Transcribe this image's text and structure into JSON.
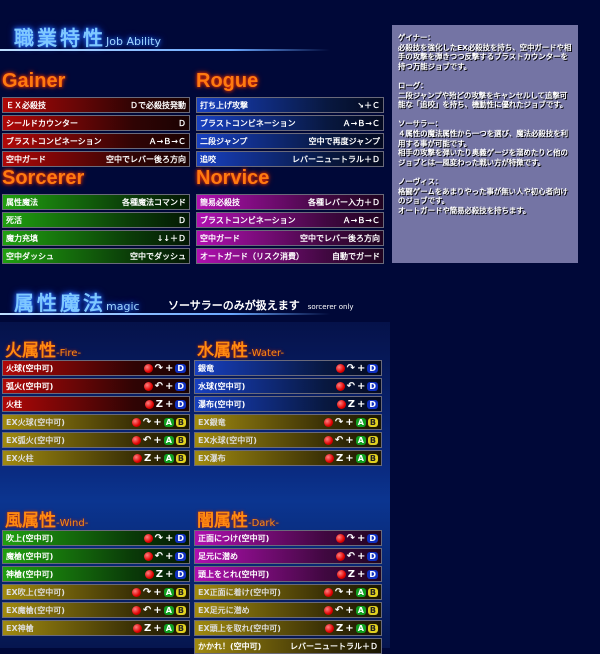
{
  "job_section": {
    "title": "職業特性",
    "title_en": "Job Ability"
  },
  "jobs": [
    {
      "name": "Gainer",
      "color": "red",
      "rows": [
        [
          "ＥＸ必殺技",
          "Ｄで必殺技発動"
        ],
        [
          "シールドカウンター",
          "Ｄ"
        ],
        [
          "ブラストコンビネーション",
          "Ａ→Ｂ→Ｃ"
        ],
        [
          "空中ガード",
          "空中でレバー後ろ方向"
        ]
      ]
    },
    {
      "name": "Rogue",
      "color": "blue",
      "rows": [
        [
          "打ち上げ攻撃",
          "↘＋Ｃ"
        ],
        [
          "ブラストコンビネーション",
          "Ａ→Ｂ→Ｃ"
        ],
        [
          "二段ジャンプ",
          "空中で再度ジャンプ"
        ],
        [
          "追咬",
          "レバーニュートラル＋Ｄ"
        ]
      ]
    },
    {
      "name": "Sorcerer",
      "color": "green",
      "rows": [
        [
          "属性魔法",
          "各種魔法コマンド"
        ],
        [
          "死活",
          "Ｄ"
        ],
        [
          "魔力充填",
          "↓↓＋Ｄ"
        ],
        [
          "空中ダッシュ",
          "空中でダッシュ"
        ]
      ]
    },
    {
      "name": "Norvice",
      "color": "purple",
      "rows": [
        [
          "簡易必殺技",
          "各種レバー入力＋Ｄ"
        ],
        [
          "ブラストコンビネーション",
          "Ａ→Ｂ→Ｃ"
        ],
        [
          "空中ガード",
          "空中でレバー後ろ方向"
        ],
        [
          "オートガード（リスク消費）",
          "自動でガード"
        ]
      ]
    }
  ],
  "info_text": "ゲイナー：\n必殺技を強化したEX必殺技を持ち、空中ガードや相手の攻撃を弾きつつ反撃するブラストカウンターを持つ万能ジョブです。\n\nローグ：\n二段ジャンプや殆どの攻撃をキャンセルして追撃可能な「追咬」を持ち、機動性に優れたジョブです。\n\nソーサラー：\n４属性の魔法属性から一つを選び、魔法必殺技を利用する事が可能です。\n相手の攻撃を弾いたり奥義ゲージを溜めたりと他のジョブとは一風変わった戦い方が特徴です。\n\nノーヴィス：\n格闘ゲームをあまりやった事が無い人や初心者向けのジョブです。\nオートガードや簡易必殺技を持ちます。",
  "magic_section": {
    "title": "属性魔法",
    "title_en": "magic",
    "note": "ソーサラーのみが扱えます",
    "note_en": "sorcerer only"
  },
  "motion_icons": {
    "qcf": "↷",
    "qcb": "↶",
    "dp": "Z"
  },
  "elements": [
    {
      "title": "火属性",
      "title_en": "-Fire-",
      "color": "red",
      "rows": [
        [
          "火球(空中可)",
          "qcf",
          "D"
        ],
        [
          "弧火(空中可)",
          "qcb",
          "D"
        ],
        [
          "火柱",
          "dp",
          "D"
        ],
        [
          "EX火球(空中可)",
          "qcf",
          "AB"
        ],
        [
          "EX弧火(空中可)",
          "qcb",
          "AB"
        ],
        [
          "EX火柱",
          "dp",
          "AB"
        ]
      ]
    },
    {
      "title": "水属性",
      "title_en": "-Water-",
      "color": "blue",
      "rows": [
        [
          "銀竜",
          "qcf",
          "D"
        ],
        [
          "水球(空中可)",
          "qcb",
          "D"
        ],
        [
          "瀑布(空中可)",
          "dp",
          "D"
        ],
        [
          "EX銀竜",
          "qcf",
          "AB"
        ],
        [
          "EX水球(空中可)",
          "qcb",
          "AB"
        ],
        [
          "EX瀑布",
          "dp",
          "AB"
        ]
      ]
    },
    {
      "title": "風属性",
      "title_en": "-Wind-",
      "color": "green",
      "rows": [
        [
          "吹上(空中可)",
          "qcf",
          "D"
        ],
        [
          "魔槍(空中可)",
          "qcb",
          "D"
        ],
        [
          "神槍(空中可)",
          "dp",
          "D"
        ],
        [
          "EX吹上(空中可)",
          "qcf",
          "AB"
        ],
        [
          "EX魔槍(空中可)",
          "qcb",
          "AB"
        ],
        [
          "EX神槍",
          "dp",
          "AB"
        ]
      ]
    },
    {
      "title": "闇属性",
      "title_en": "-Dark-",
      "color": "purple",
      "rows": [
        [
          "正面につけ(空中可)",
          "qcf",
          "D"
        ],
        [
          "足元に潜め",
          "qcb",
          "D"
        ],
        [
          "頭上をとれ(空中可)",
          "dp",
          "D"
        ],
        [
          "EX正面に着け(空中可)",
          "qcf",
          "AB"
        ],
        [
          "EX足元に潜め",
          "qcb",
          "AB"
        ],
        [
          "EX頭上を取れ(空中可)",
          "dp",
          "AB"
        ]
      ],
      "extra": [
        "かかれ！(空中可)",
        "レバーニュートラル＋Ｄ"
      ]
    }
  ],
  "buttons": {
    "A": "A",
    "B": "B",
    "D": "D",
    "plus": "+"
  }
}
